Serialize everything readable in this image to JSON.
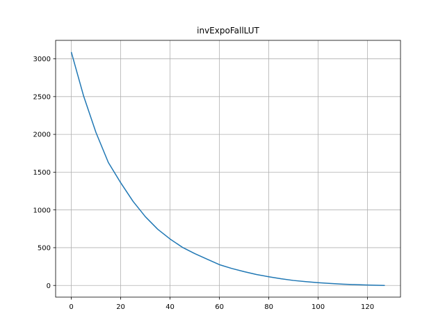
{
  "chart_data": {
    "type": "line",
    "title": "invExpoFallLUT",
    "xlabel": "",
    "ylabel": "",
    "xlim": [
      -6.35,
      133.35
    ],
    "ylim": [
      -154.5,
      3244.5
    ],
    "xticks": [
      0,
      20,
      40,
      60,
      80,
      100,
      120
    ],
    "yticks": [
      0,
      500,
      1000,
      1500,
      2000,
      2500,
      3000
    ],
    "grid": true,
    "series": [
      {
        "color": "#1f77b4",
        "x": [
          0,
          5,
          10,
          15,
          20,
          25,
          30,
          35,
          40,
          45,
          50,
          55,
          60,
          65,
          70,
          75,
          80,
          85,
          90,
          95,
          100,
          105,
          110,
          115,
          120,
          127
        ],
        "y": [
          3090,
          2506,
          2024,
          1628,
          1360,
          1114,
          910,
          744,
          615,
          505,
          422,
          348,
          275,
          225,
          183,
          145,
          115,
          88,
          66,
          50,
          37,
          26,
          17,
          11,
          6,
          0
        ]
      }
    ]
  }
}
